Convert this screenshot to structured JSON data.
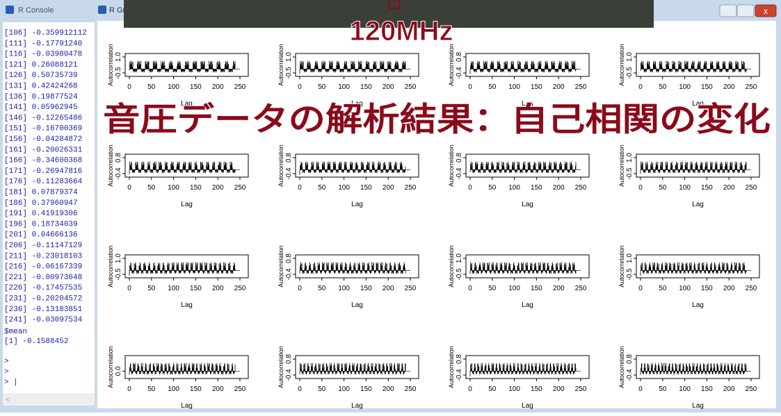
{
  "console": {
    "title": "R Console",
    "lines": [
      "[106] -0.359912112",
      "[111] -0.17791240",
      "[116] -0.03980478",
      "[121]  0.26088121",
      "[126]  0.50735739",
      "[131]  0.42424268",
      "[136]  0.19877524",
      "[141]  0.05962945",
      "[146] -0.12265486",
      "[151] -0.16700369",
      "[156] -0.04284872",
      "[161] -0.20026331",
      "[166] -0.34600368",
      "[171] -0.26947816",
      "[176] -0.11283664",
      "[181]  0.07879374",
      "[186]  0.37960947",
      "[191]  0.41919306",
      "[196]  0.18734039",
      "[201]  0.04666136",
      "[206] -0.11147129",
      "[211] -0.23018103",
      "[216] -0.06167339",
      "[221] -0.00973648",
      "[226] -0.17457535",
      "[231] -0.20204572",
      "[236] -0.13183851",
      "[241] -0.03097534"
    ],
    "mean_label": "$mean",
    "mean_value": "[1] -0.1588452",
    "prompts": [
      ">",
      ">",
      "> |"
    ]
  },
  "graphics": {
    "title": "R Gra",
    "frequency": "120MHz",
    "headline": "音圧データの解析結果：自己相関の変化",
    "plots": [
      {
        "ylabel": "Autocorrelation",
        "xlabel": "Lag",
        "yticks": [
          "-0.5",
          "1.0"
        ],
        "xticks": [
          "0",
          "50",
          "100",
          "150",
          "200",
          "250"
        ]
      },
      {
        "ylabel": "Autocorrelation",
        "xlabel": "Lag",
        "yticks": [
          "-0.5",
          "1.0"
        ],
        "xticks": [
          "0",
          "50",
          "100",
          "150",
          "200",
          "250"
        ]
      },
      {
        "ylabel": "Autocorrelation",
        "xlabel": "Lag",
        "yticks": [
          "-0.4",
          "0.8"
        ],
        "xticks": [
          "0",
          "50",
          "100",
          "150",
          "200",
          "250"
        ]
      },
      {
        "ylabel": "Autocorrelation",
        "xlabel": "Lag",
        "yticks": [
          "-0.5",
          "1.0"
        ],
        "xticks": [
          "0",
          "50",
          "100",
          "150",
          "200",
          "250"
        ]
      },
      {
        "ylabel": "Autocorrelation",
        "xlabel": "Lag",
        "yticks": [
          "-0.4",
          "0.8"
        ],
        "xticks": [
          "0",
          "50",
          "100",
          "150",
          "200",
          "250"
        ]
      },
      {
        "ylabel": "Autocorrelation",
        "xlabel": "Lag",
        "yticks": [
          "-0.4",
          "0.8"
        ],
        "xticks": [
          "0",
          "50",
          "100",
          "150",
          "200",
          "250"
        ]
      },
      {
        "ylabel": "Autocorrelation",
        "xlabel": "Lag",
        "yticks": [
          "-0.4",
          "0.8"
        ],
        "xticks": [
          "0",
          "50",
          "100",
          "150",
          "200",
          "250"
        ]
      },
      {
        "ylabel": "Autocorrelation",
        "xlabel": "Lag",
        "yticks": [
          "-0.5",
          "1.0"
        ],
        "xticks": [
          "0",
          "50",
          "100",
          "150",
          "200",
          "250"
        ]
      },
      {
        "ylabel": "Autocorrelation",
        "xlabel": "Lag",
        "yticks": [
          "-0.5",
          "1.0"
        ],
        "xticks": [
          "0",
          "50",
          "100",
          "150",
          "200",
          "250"
        ]
      },
      {
        "ylabel": "Autocorrelation",
        "xlabel": "Lag",
        "yticks": [
          "-0.4",
          "0.8"
        ],
        "xticks": [
          "0",
          "50",
          "100",
          "150",
          "200",
          "250"
        ]
      },
      {
        "ylabel": "Autocorrelation",
        "xlabel": "Lag",
        "yticks": [
          "-0.5",
          "1.0"
        ],
        "xticks": [
          "0",
          "50",
          "100",
          "150",
          "200",
          "250"
        ]
      },
      {
        "ylabel": "Autocorrelation",
        "xlabel": "Lag",
        "yticks": [
          "-0.5",
          "1.0"
        ],
        "xticks": [
          "0",
          "50",
          "100",
          "150",
          "200",
          "250"
        ]
      },
      {
        "ylabel": "Autocorrelation",
        "xlabel": "Lag",
        "yticks": [
          "0.0"
        ],
        "xticks": [
          "0",
          "50",
          "100",
          "150",
          "200",
          "250"
        ]
      },
      {
        "ylabel": "Autocorrelation",
        "xlabel": "Lag",
        "yticks": [
          "-0.4",
          "0.8"
        ],
        "xticks": [
          "0",
          "50",
          "100",
          "150",
          "200",
          "250"
        ]
      },
      {
        "ylabel": "Autocorrelation",
        "xlabel": "Lag",
        "yticks": [
          "-0.4",
          "0.8"
        ],
        "xticks": [
          "0",
          "50",
          "100",
          "150",
          "200",
          "250"
        ]
      },
      {
        "ylabel": "Autocorrelation",
        "xlabel": "Lag",
        "yticks": [
          "-0.4",
          "0.8"
        ],
        "xticks": [
          "0",
          "50",
          "100",
          "150",
          "200",
          "250"
        ]
      }
    ]
  }
}
